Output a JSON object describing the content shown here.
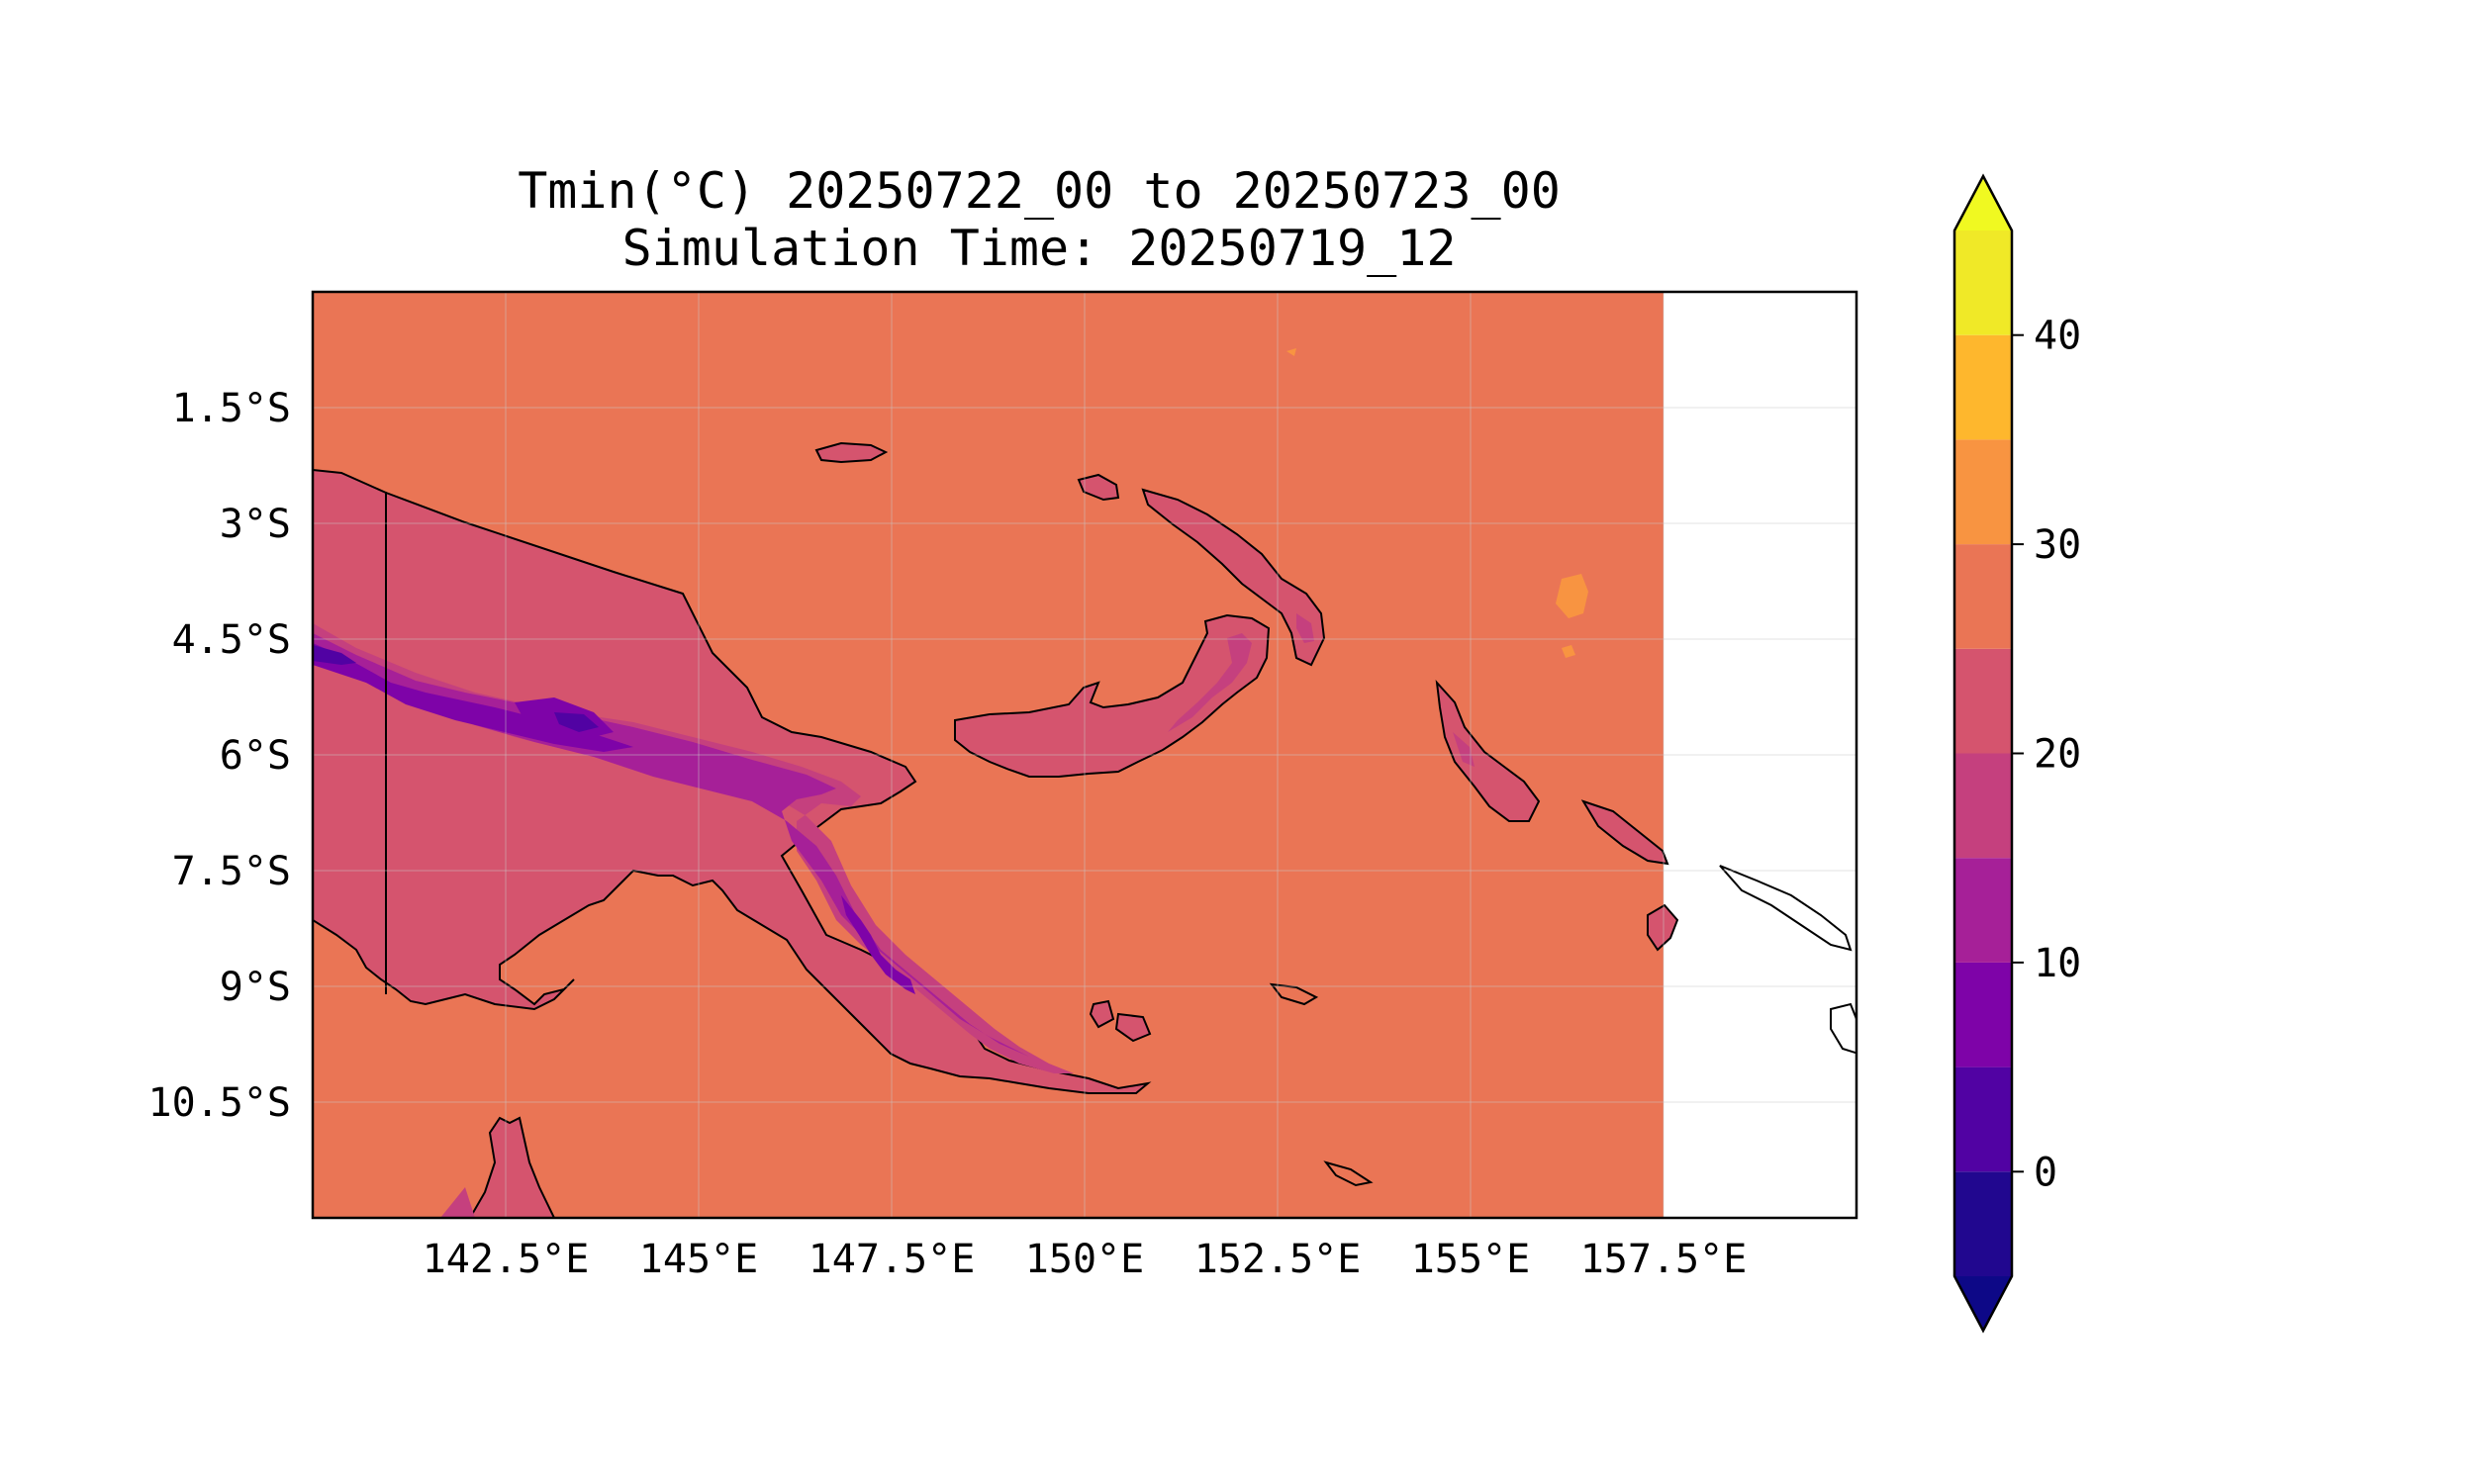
{
  "title": {
    "line1": "Tmin(°C) 20250722_00 to 20250723_00",
    "line2": "Simulation Time: 20250719_12"
  },
  "map": {
    "lon_range": [
      140,
      160
    ],
    "lat_range": [
      -12,
      0
    ],
    "data_extent_lon_max": 157.5,
    "x_ticks": [
      {
        "value": 142.5,
        "label": "142.5°E"
      },
      {
        "value": 145,
        "label": "145°E"
      },
      {
        "value": 147.5,
        "label": "147.5°E"
      },
      {
        "value": 150,
        "label": "150°E"
      },
      {
        "value": 152.5,
        "label": "152.5°E"
      },
      {
        "value": 155,
        "label": "155°E"
      },
      {
        "value": 157.5,
        "label": "157.5°E"
      }
    ],
    "y_ticks": [
      {
        "value": -1.5,
        "label": "1.5°S"
      },
      {
        "value": -3,
        "label": "3°S"
      },
      {
        "value": -4.5,
        "label": "4.5°S"
      },
      {
        "value": -6,
        "label": "6°S"
      },
      {
        "value": -7.5,
        "label": "7.5°S"
      },
      {
        "value": -9,
        "label": "9°S"
      },
      {
        "value": -10.5,
        "label": "10.5°S"
      }
    ],
    "grid": true,
    "ocean_color": "#ea7555"
  },
  "colorbar": {
    "levels": [
      -5,
      0,
      5,
      10,
      15,
      20,
      25,
      30,
      35,
      40,
      45
    ],
    "colors": [
      "#21078f",
      "#5102a3",
      "#7e03a8",
      "#a62098",
      "#c5407e",
      "#d5546e",
      "#ea7555",
      "#f89441",
      "#feb72d",
      "#f0e927"
    ],
    "extend_low_color": "#0d0887",
    "extend_high_color": "#f0f921",
    "ticks": [
      {
        "value": 0,
        "label": "0"
      },
      {
        "value": 10,
        "label": "10"
      },
      {
        "value": 20,
        "label": "20"
      },
      {
        "value": 30,
        "label": "30"
      },
      {
        "value": 40,
        "label": "40"
      }
    ]
  }
}
